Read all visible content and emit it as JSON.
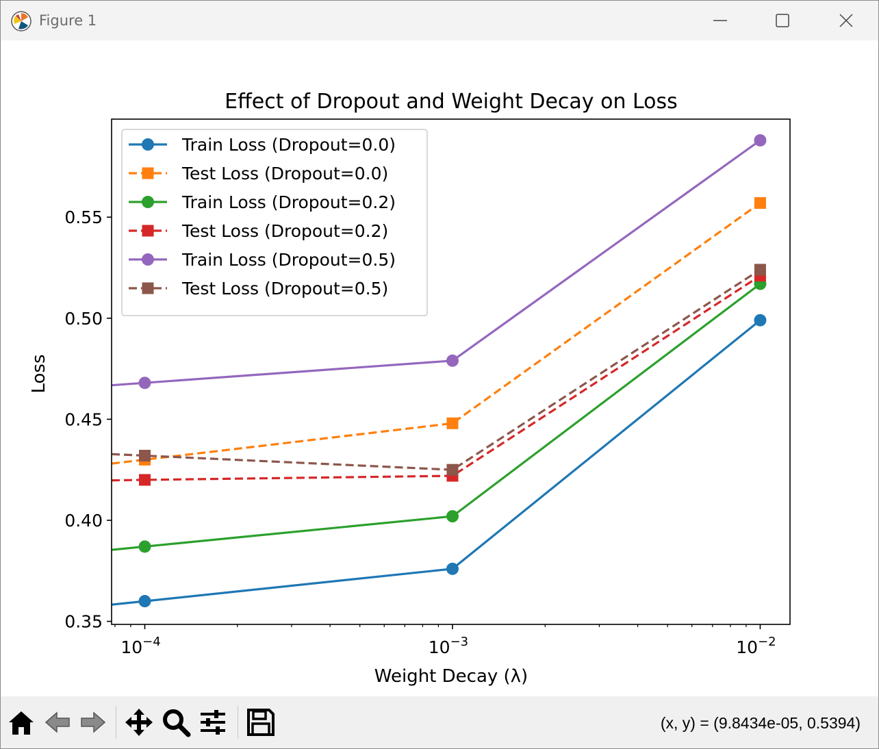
{
  "window": {
    "title": "Figure 1",
    "icon": "matplotlib-logo-icon",
    "controls": [
      "minimize-icon",
      "maximize-icon",
      "close-icon"
    ]
  },
  "toolbar": {
    "buttons": [
      "home-icon",
      "back-arrow-icon",
      "forward-arrow-icon",
      "pan-move-icon",
      "zoom-magnifier-icon",
      "configure-subplots-icon",
      "save-floppy-icon"
    ],
    "coords_text": "(x, y) = (9.8434e-05, 0.5394)"
  },
  "chart_data": {
    "type": "line",
    "title": "Effect of Dropout and Weight Decay on Loss",
    "xlabel": "Weight Decay (λ)",
    "ylabel": "Loss",
    "xscale": "log",
    "xlim": [
      7.8e-05,
      0.0125
    ],
    "ylim": [
      0.3485,
      0.5985
    ],
    "x": [
      0.0001,
      0.001,
      0.01
    ],
    "x_tick_values": [
      0.0001,
      0.001,
      0.01
    ],
    "x_tick_labels": [
      {
        "base": "10",
        "exp": "−4"
      },
      {
        "base": "10",
        "exp": "−3"
      },
      {
        "base": "10",
        "exp": "−2"
      }
    ],
    "y_tick_values": [
      0.35,
      0.4,
      0.45,
      0.5,
      0.55
    ],
    "y_tick_labels": [
      "0.35",
      "0.40",
      "0.45",
      "0.50",
      "0.55"
    ],
    "grid": false,
    "legend_position": "upper-left",
    "series": [
      {
        "name": "Train Loss (Dropout=0.0)",
        "values": [
          0.36,
          0.376,
          0.499
        ],
        "color": "#1f77b4",
        "linestyle": "solid",
        "marker": "circle"
      },
      {
        "name": "Test Loss (Dropout=0.0)",
        "values": [
          0.43,
          0.448,
          0.557
        ],
        "color": "#ff7f0e",
        "linestyle": "dashed",
        "marker": "square"
      },
      {
        "name": "Train Loss (Dropout=0.2)",
        "values": [
          0.387,
          0.402,
          0.517
        ],
        "color": "#2ca02c",
        "linestyle": "solid",
        "marker": "circle"
      },
      {
        "name": "Test Loss (Dropout=0.2)",
        "values": [
          0.42,
          0.422,
          0.521
        ],
        "color": "#d62728",
        "linestyle": "dashed",
        "marker": "square"
      },
      {
        "name": "Train Loss (Dropout=0.5)",
        "values": [
          0.468,
          0.479,
          0.588
        ],
        "color": "#9467bd",
        "linestyle": "solid",
        "marker": "circle"
      },
      {
        "name": "Test Loss (Dropout=0.5)",
        "values": [
          0.432,
          0.425,
          0.524
        ],
        "color": "#8c564b",
        "linestyle": "dashed",
        "marker": "square"
      }
    ]
  }
}
